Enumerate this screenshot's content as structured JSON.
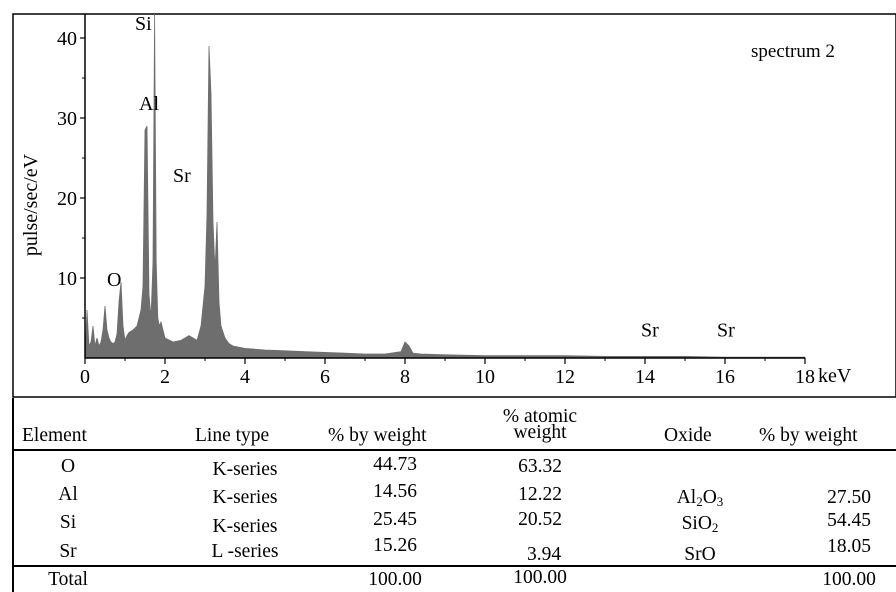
{
  "chart_data": {
    "type": "area",
    "title": "spectrum 2",
    "xlabel": "keV",
    "ylabel": "pulse/sec/eV",
    "xlim": [
      0,
      18
    ],
    "ylim": [
      0,
      43
    ],
    "x_ticks": [
      0,
      2,
      4,
      6,
      8,
      10,
      12,
      14,
      16,
      18
    ],
    "y_ticks": [
      10,
      20,
      30,
      40
    ],
    "grid": false,
    "series": [
      {
        "x": [
          0,
          0.05,
          0.1,
          0.15,
          0.2,
          0.25,
          0.3,
          0.35,
          0.4,
          0.45,
          0.5,
          0.55,
          0.6,
          0.65,
          0.7,
          0.75,
          0.8,
          0.85,
          0.9,
          0.95,
          1.0,
          1.05,
          1.1,
          1.2,
          1.3,
          1.4,
          1.45,
          1.5,
          1.55,
          1.6,
          1.65,
          1.7,
          1.74,
          1.78,
          1.82,
          1.86,
          1.9,
          2.0,
          2.2,
          2.4,
          2.6,
          2.7,
          2.8,
          2.9,
          3.0,
          3.05,
          3.1,
          3.15,
          3.2,
          3.25,
          3.3,
          3.35,
          3.4,
          3.5,
          3.6,
          3.7,
          4.0,
          4.5,
          5.0,
          5.5,
          6.0,
          6.5,
          7.0,
          7.5,
          7.9,
          8.0,
          8.1,
          8.2,
          8.4,
          9.0,
          10.0,
          11.0,
          12.0,
          13.0,
          14.0,
          15.0,
          16.0,
          17.0,
          18.0
        ],
        "values": [
          0,
          6,
          1.5,
          2,
          4,
          1.5,
          2.5,
          1.5,
          2,
          3.5,
          6.5,
          3.5,
          2.5,
          2,
          1.8,
          2,
          3,
          7,
          9.5,
          4,
          2.2,
          2.8,
          3.2,
          3.5,
          4,
          6,
          9,
          28.5,
          29,
          8,
          5,
          12,
          43,
          12,
          5,
          4,
          4.5,
          2.5,
          2,
          2.2,
          2.8,
          2.5,
          2.2,
          4,
          9,
          18,
          39,
          33,
          17,
          11,
          17,
          7,
          4,
          2.5,
          1.8,
          1.5,
          1.2,
          1,
          0.9,
          0.8,
          0.7,
          0.6,
          0.5,
          0.5,
          0.8,
          2,
          1.5,
          0.6,
          0.5,
          0.4,
          0.3,
          0.3,
          0.3,
          0.2,
          0.2,
          0.2,
          0.1,
          0.1,
          0.1
        ]
      }
    ],
    "peak_labels": [
      {
        "label": "Si",
        "x": 1.25,
        "y": 41
      },
      {
        "label": "Al",
        "x": 1.35,
        "y": 31
      },
      {
        "label": "Sr",
        "x": 2.2,
        "y": 22
      },
      {
        "label": "O",
        "x": 0.55,
        "y": 9
      },
      {
        "label": "Sr",
        "x": 13.9,
        "y": 2.7
      },
      {
        "label": "Sr",
        "x": 15.8,
        "y": 2.7
      }
    ],
    "color": "#6e6e6e"
  },
  "table": {
    "headers": {
      "element": "Element",
      "line_type": "Line type",
      "pct_weight": "% by weight",
      "atomic_line1": "% atomic",
      "atomic_line2": "weight",
      "oxide": "Oxide",
      "oxide_pct": "% by weight"
    },
    "rows": [
      {
        "element": "O",
        "line_type": "K-series",
        "pct_weight": "44.73",
        "atomic": "63.32",
        "oxide": "",
        "oxide_sub": "",
        "oxide_pct": ""
      },
      {
        "element": "Al",
        "line_type": "K-series",
        "pct_weight": "14.56",
        "atomic": "12.22",
        "oxide": "Al",
        "oxide_sub": "2",
        "oxide_tail": "O",
        "oxide_sub2": "3",
        "oxide_pct": "27.50"
      },
      {
        "element": "Si",
        "line_type": "K-series",
        "pct_weight": "25.45",
        "atomic": "20.52",
        "oxide": "SiO",
        "oxide_sub": "2",
        "oxide_tail": "",
        "oxide_sub2": "",
        "oxide_pct": "54.45"
      },
      {
        "element": "Sr",
        "line_type": "L -series",
        "pct_weight": "15.26",
        "atomic": "3.94",
        "oxide": "SrO",
        "oxide_sub": "",
        "oxide_tail": "",
        "oxide_sub2": "",
        "oxide_pct": "18.05"
      }
    ],
    "total": {
      "label": "Total",
      "pct_weight": "100.00",
      "atomic": "100.00",
      "oxide_pct": "100.00"
    }
  }
}
